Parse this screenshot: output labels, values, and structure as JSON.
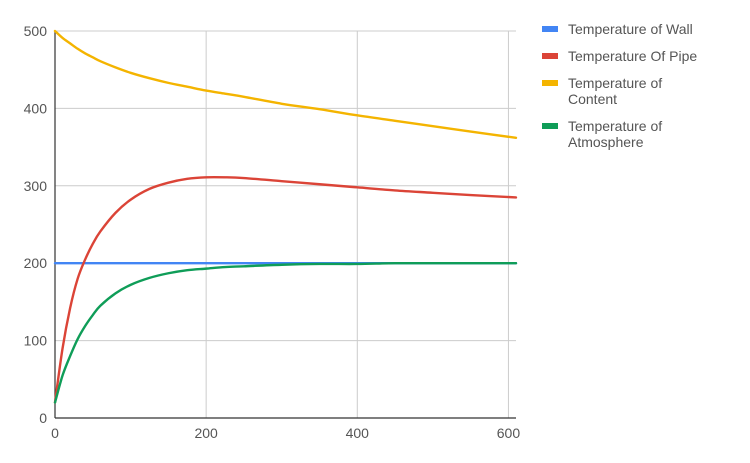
{
  "chart_data": {
    "type": "line",
    "title": "",
    "xlabel": "",
    "ylabel": "",
    "xlim": [
      0,
      610
    ],
    "ylim": [
      0,
      500
    ],
    "x_ticks": [
      0,
      200,
      400,
      600
    ],
    "y_ticks": [
      0,
      100,
      200,
      300,
      400,
      500
    ],
    "x_tick_labels": [
      "0",
      "200",
      "400",
      "600"
    ],
    "y_tick_labels": [
      "0",
      "100",
      "200",
      "300",
      "400",
      "500"
    ],
    "grid": true,
    "legend_position": "right",
    "x": [
      0,
      10,
      20,
      30,
      40,
      50,
      60,
      80,
      100,
      125,
      150,
      175,
      200,
      225,
      250,
      300,
      350,
      400,
      450,
      500,
      550,
      610
    ],
    "series": [
      {
        "name": "Temperature of Wall",
        "legend_lines": [
          "Temperature of Wall"
        ],
        "color": "#4285f4",
        "values": [
          200,
          200,
          200,
          200,
          200,
          200,
          200,
          200,
          200,
          200,
          200,
          200,
          200,
          200,
          200,
          200,
          200,
          200,
          200,
          200,
          200,
          200
        ]
      },
      {
        "name": "Temperature Of Pipe",
        "legend_lines": [
          "Temperature Of Pipe"
        ],
        "color": "#db4437",
        "values": [
          20,
          90,
          142,
          180,
          205,
          225,
          241,
          265,
          282,
          296,
          304,
          309,
          311,
          311,
          310,
          306,
          302,
          298,
          294,
          291,
          288,
          285
        ]
      },
      {
        "name": "Temperature of Content",
        "legend_lines": [
          "Temperature of",
          "Content"
        ],
        "color": "#f4b400",
        "values": [
          500,
          491,
          484,
          477,
          471,
          466,
          461,
          453,
          446,
          439,
          433,
          428,
          423,
          419,
          415,
          406,
          399,
          391,
          384,
          377,
          370,
          362
        ]
      },
      {
        "name": "Temperature of Atmosphere",
        "legend_lines": [
          "Temperature of",
          "Atmosphere"
        ],
        "color": "#0f9d58",
        "values": [
          20,
          55,
          80,
          102,
          119,
          133,
          145,
          161,
          172,
          181,
          187,
          191,
          193,
          195,
          196,
          198,
          199,
          199,
          200,
          200,
          200,
          200
        ]
      }
    ]
  }
}
